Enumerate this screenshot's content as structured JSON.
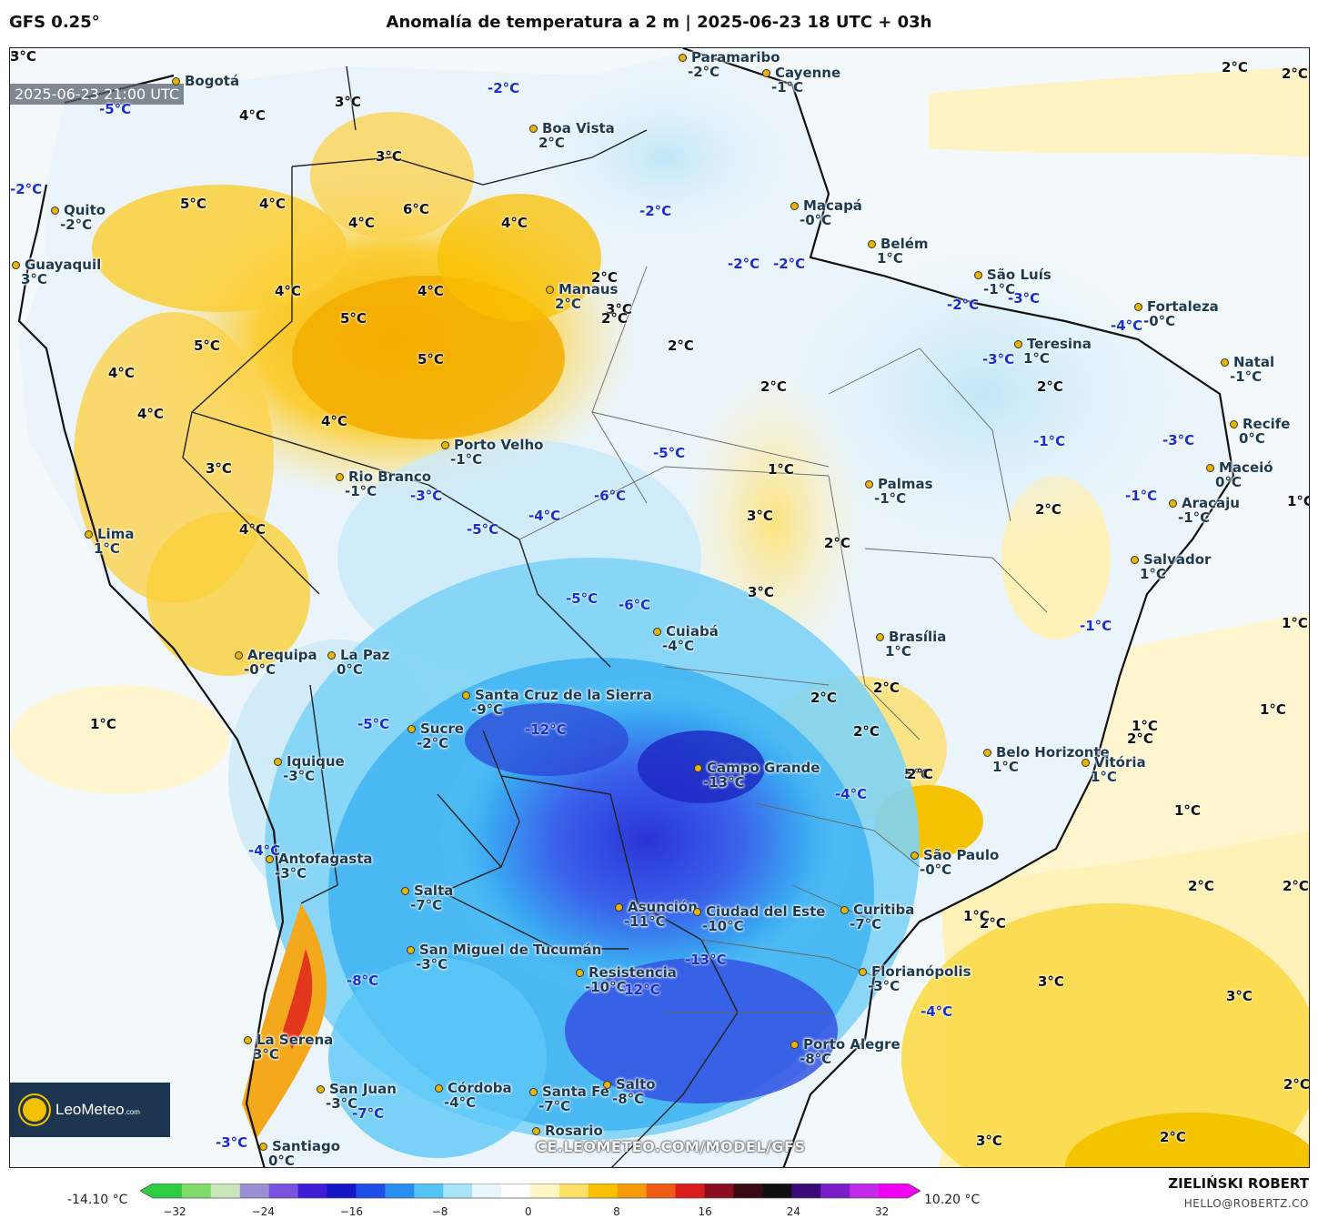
{
  "header": {
    "model": "GFS 0.25°",
    "title": "Anomalía de temperatura a 2 m | 2025-06-23 18 UTC + 03h"
  },
  "timestamp": "2025-06-23 21:00 UTC",
  "logo_text": "LeoMeteo",
  "logo_suffix": ".com",
  "watermark": "CE.LEOMETEO.COM/MODEL/GFS",
  "colorbar": {
    "min_label": "-14.10 °C",
    "max_label": "10.20 °C",
    "ticks": [
      "−32",
      "−24",
      "−16",
      "−8",
      "0",
      "8",
      "16",
      "24",
      "32"
    ],
    "colors": [
      "#2ecc40",
      "#7fdc6a",
      "#c8e6b9",
      "#9b8fd3",
      "#7a52e0",
      "#3f1cd6",
      "#1515c8",
      "#1f4fe8",
      "#2a8df0",
      "#54c4f7",
      "#a8e3f8",
      "#e8f6fc",
      "#ffffff",
      "#fff5c4",
      "#ffe066",
      "#f9c000",
      "#f59a0a",
      "#ec5a13",
      "#d81b1b",
      "#8c0c1f",
      "#3a0a12",
      "#101010",
      "#3a0a7a",
      "#7a1fc8",
      "#c02ae8",
      "#f000f0"
    ]
  },
  "author": "ZIELIŃSKI ROBERT",
  "email": "HELLO@ROBERTZ.CO",
  "cities": [
    {
      "name": "Bogotá",
      "value": ""
    },
    {
      "name": "Paramaribo",
      "value": "-2°C"
    },
    {
      "name": "Cayenne",
      "value": "-1°C"
    },
    {
      "name": "Boa Vista",
      "value": "2°C"
    },
    {
      "name": "Macapá",
      "value": "-0°C"
    },
    {
      "name": "Belém",
      "value": "1°C"
    },
    {
      "name": "Quito",
      "value": "-2°C"
    },
    {
      "name": "Guayaquil",
      "value": "3°C"
    },
    {
      "name": "São Luís",
      "value": "-1°C"
    },
    {
      "name": "Fortaleza",
      "value": "-0°C"
    },
    {
      "name": "Manaus",
      "value": "2°C"
    },
    {
      "name": "Teresina",
      "value": "1°C"
    },
    {
      "name": "Natal",
      "value": "-1°C"
    },
    {
      "name": "Recife",
      "value": "0°C"
    },
    {
      "name": "Porto Velho",
      "value": "-1°C"
    },
    {
      "name": "Rio Branco",
      "value": "-1°C"
    },
    {
      "name": "Maceió",
      "value": "0°C"
    },
    {
      "name": "Palmas",
      "value": "-1°C"
    },
    {
      "name": "Aracaju",
      "value": "-1°C"
    },
    {
      "name": "Lima",
      "value": "1°C"
    },
    {
      "name": "Salvador",
      "value": "1°C"
    },
    {
      "name": "Cuiabá",
      "value": "-4°C"
    },
    {
      "name": "Brasília",
      "value": "1°C"
    },
    {
      "name": "Arequipa",
      "value": "-0°C"
    },
    {
      "name": "La Paz",
      "value": "0°C"
    },
    {
      "name": "Santa Cruz de la Sierra",
      "value": "-9°C"
    },
    {
      "name": "Sucre",
      "value": "-2°C"
    },
    {
      "name": "Iquique",
      "value": "-3°C"
    },
    {
      "name": "Campo Grande",
      "value": "-13°C"
    },
    {
      "name": "Belo Horizonte",
      "value": "1°C"
    },
    {
      "name": "Vitória",
      "value": "1°C"
    },
    {
      "name": "Antofagasta",
      "value": "-3°C"
    },
    {
      "name": "São Paulo",
      "value": "-0°C"
    },
    {
      "name": "Salta",
      "value": "-7°C"
    },
    {
      "name": "Asunción",
      "value": "-11°C"
    },
    {
      "name": "Ciudad del Este",
      "value": "-10°C"
    },
    {
      "name": "Curitiba",
      "value": "-7°C"
    },
    {
      "name": "San Miguel de Tucumán",
      "value": "-3°C"
    },
    {
      "name": "Resistencia",
      "value": "-10°C"
    },
    {
      "name": "Florianópolis",
      "value": "-3°C"
    },
    {
      "name": "La Serena",
      "value": "3°C"
    },
    {
      "name": "Porto Alegre",
      "value": "-8°C"
    },
    {
      "name": "San Juan",
      "value": "-3°C"
    },
    {
      "name": "Córdoba",
      "value": "-4°C"
    },
    {
      "name": "Santa Fe",
      "value": "-7°C"
    },
    {
      "name": "Salto",
      "value": "-8°C"
    },
    {
      "name": "Santiago",
      "value": "0°C"
    },
    {
      "name": "Rosario",
      "value": ""
    }
  ],
  "anomalies": [
    {
      "text": "2°C",
      "sign": "pos"
    },
    {
      "text": "2°C",
      "sign": "pos"
    },
    {
      "text": "-2°C",
      "sign": "neg"
    },
    {
      "text": "-5°C",
      "sign": "neg"
    },
    {
      "text": "4°C",
      "sign": "pos"
    },
    {
      "text": "3°C",
      "sign": "pos"
    },
    {
      "text": "3°C",
      "sign": "pos"
    },
    {
      "text": "-2°C",
      "sign": "neg"
    },
    {
      "text": "5°C",
      "sign": "pos"
    },
    {
      "text": "4°C",
      "sign": "pos"
    },
    {
      "text": "4°C",
      "sign": "pos"
    },
    {
      "text": "6°C",
      "sign": "pos"
    },
    {
      "text": "4°C",
      "sign": "pos"
    },
    {
      "text": "-2°C",
      "sign": "neg"
    },
    {
      "text": "4°C",
      "sign": "pos"
    },
    {
      "text": "4°C",
      "sign": "pos"
    },
    {
      "text": "5°C",
      "sign": "pos"
    },
    {
      "text": "5°C",
      "sign": "pos"
    },
    {
      "text": "5°C",
      "sign": "pos"
    },
    {
      "text": "4°C",
      "sign": "pos"
    },
    {
      "text": "4°C",
      "sign": "pos"
    },
    {
      "text": "4°C",
      "sign": "pos"
    },
    {
      "text": "3°C",
      "sign": "pos"
    },
    {
      "text": "4°C",
      "sign": "pos"
    },
    {
      "text": "2°C",
      "sign": "pos"
    },
    {
      "text": "3°C",
      "sign": "pos"
    },
    {
      "text": "2°C",
      "sign": "pos"
    },
    {
      "text": "2°C",
      "sign": "pos"
    },
    {
      "text": "2°C",
      "sign": "pos"
    },
    {
      "text": "1°C",
      "sign": "pos"
    },
    {
      "text": "1°C",
      "sign": "pos"
    },
    {
      "text": "2°C",
      "sign": "pos"
    },
    {
      "text": "2°C",
      "sign": "pos"
    },
    {
      "text": "3°C",
      "sign": "pos"
    },
    {
      "text": "2°C",
      "sign": "pos"
    },
    {
      "text": "3°C",
      "sign": "pos"
    },
    {
      "text": "2°C",
      "sign": "pos"
    },
    {
      "text": "2°C",
      "sign": "pos"
    },
    {
      "text": "2°C",
      "sign": "pos"
    },
    {
      "text": "5°C",
      "sign": "pos"
    },
    {
      "text": "2°C",
      "sign": "pos"
    },
    {
      "text": "-2°C",
      "sign": "neg"
    },
    {
      "text": "-2°C",
      "sign": "neg"
    },
    {
      "text": "-2°C",
      "sign": "neg"
    },
    {
      "text": "-3°C",
      "sign": "neg"
    },
    {
      "text": "-4°C",
      "sign": "neg"
    },
    {
      "text": "-3°C",
      "sign": "neg"
    },
    {
      "text": "-1°C",
      "sign": "neg"
    },
    {
      "text": "-3°C",
      "sign": "neg"
    },
    {
      "text": "-1°C",
      "sign": "neg"
    },
    {
      "text": "-1°C",
      "sign": "neg"
    },
    {
      "text": "-5°C",
      "sign": "neg"
    },
    {
      "text": "-6°C",
      "sign": "neg"
    },
    {
      "text": "-3°C",
      "sign": "neg"
    },
    {
      "text": "-4°C",
      "sign": "neg"
    },
    {
      "text": "-5°C",
      "sign": "neg"
    },
    {
      "text": "-5°C",
      "sign": "neg"
    },
    {
      "text": "-6°C",
      "sign": "neg"
    },
    {
      "text": "-5°C",
      "sign": "neg"
    },
    {
      "text": "-12°C",
      "sign": "neg"
    },
    {
      "text": "-4°C",
      "sign": "neg"
    },
    {
      "text": "-8°C",
      "sign": "neg"
    },
    {
      "text": "-12°C",
      "sign": "neg"
    },
    {
      "text": "-13°C",
      "sign": "neg"
    },
    {
      "text": "-4°C",
      "sign": "neg"
    },
    {
      "text": "-7°C",
      "sign": "neg"
    },
    {
      "text": "-3°C",
      "sign": "neg"
    },
    {
      "text": "-4°C",
      "sign": "neg"
    },
    {
      "text": "1°C",
      "sign": "pos"
    },
    {
      "text": "1°C",
      "sign": "pos"
    },
    {
      "text": "1°C",
      "sign": "pos"
    },
    {
      "text": "1°C",
      "sign": "pos"
    },
    {
      "text": "1°C",
      "sign": "pos"
    },
    {
      "text": "2°C",
      "sign": "pos"
    },
    {
      "text": "2°C",
      "sign": "pos"
    },
    {
      "text": "2°C",
      "sign": "pos"
    },
    {
      "text": "3°C",
      "sign": "pos"
    },
    {
      "text": "3°C",
      "sign": "pos"
    },
    {
      "text": "2°C",
      "sign": "pos"
    },
    {
      "text": "2°C",
      "sign": "pos"
    },
    {
      "text": "3°C",
      "sign": "pos"
    },
    {
      "text": "2°C",
      "sign": "pos"
    },
    {
      "text": "1°C",
      "sign": "pos"
    },
    {
      "text": "5°C",
      "sign": "pos"
    },
    {
      "text": "3°C",
      "sign": "pos"
    }
  ]
}
